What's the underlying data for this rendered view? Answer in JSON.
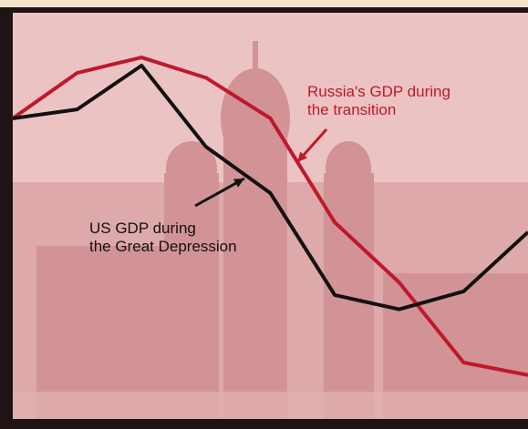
{
  "chart_data": {
    "type": "line",
    "categories": [
      null,
      null,
      null,
      null,
      null,
      null,
      null,
      null,
      null
    ],
    "ylim": [
      0,
      100
    ],
    "series": [
      {
        "color": "#c0182a",
        "values": [
          74,
          85.2,
          89,
          84,
          74,
          48.4,
          33.6,
          13.9,
          10.8
        ]
      },
      {
        "color": "#111111",
        "values": [
          74,
          76.2,
          87,
          67,
          55.6,
          30.5,
          27,
          31.4,
          46
        ]
      }
    ],
    "annotations": [
      [
        "Russia's GDP during",
        "the transition"
      ],
      [
        "US GDP during",
        "the Great Depression"
      ]
    ]
  }
}
